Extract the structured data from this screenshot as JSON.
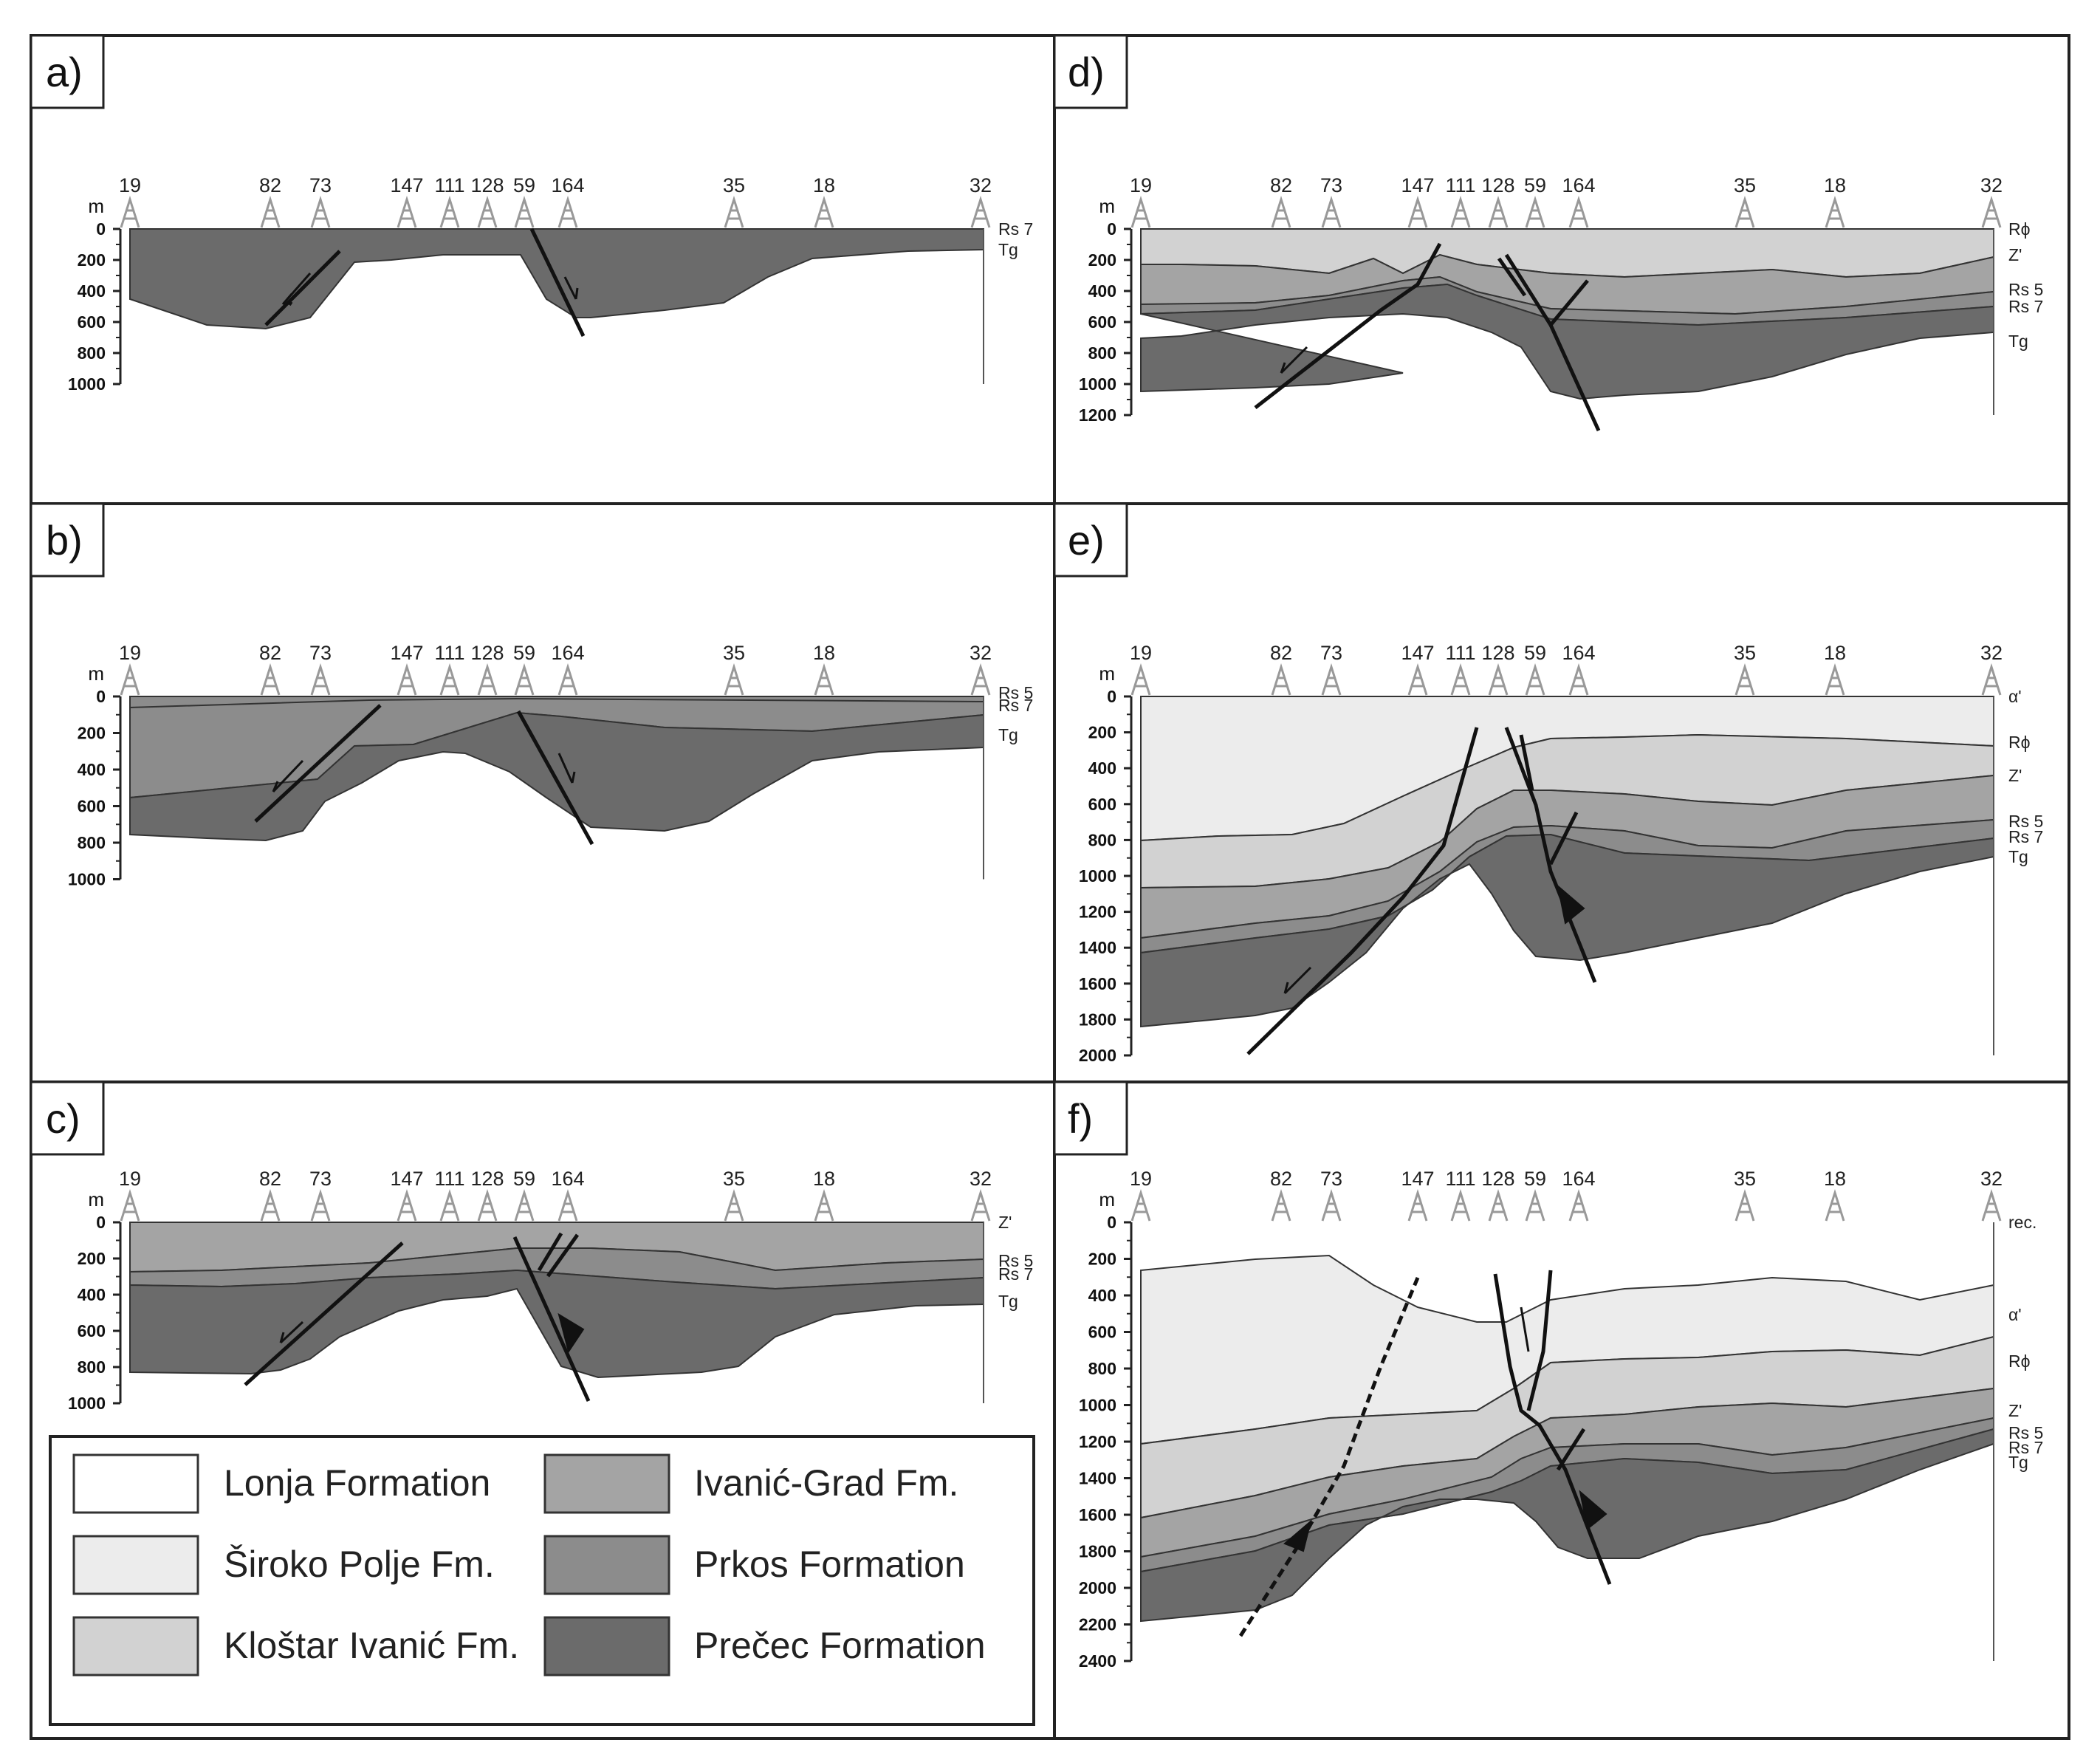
{
  "figure": {
    "wells": [
      "19",
      "82",
      "73",
      "147",
      "111",
      "128",
      "59",
      "164",
      "35",
      "18",
      "32"
    ],
    "depth_unit": "m",
    "panels": {
      "a": {
        "label": "a)",
        "depth_ticks": [
          "0",
          "200",
          "400",
          "600",
          "800",
          "1000"
        ],
        "horizons": [
          "Rs 7",
          "Tg"
        ]
      },
      "b": {
        "label": "b)",
        "depth_ticks": [
          "0",
          "200",
          "400",
          "600",
          "800",
          "1000"
        ],
        "horizons": [
          "Rs 5",
          "Rs 7",
          "Tg"
        ]
      },
      "c": {
        "label": "c)",
        "depth_ticks": [
          "0",
          "200",
          "400",
          "600",
          "800",
          "1000"
        ],
        "horizons": [
          "Z'",
          "Rs 5",
          "Rs 7",
          "Tg"
        ]
      },
      "d": {
        "label": "d)",
        "depth_ticks": [
          "0",
          "200",
          "400",
          "600",
          "800",
          "1000",
          "1200"
        ],
        "horizons": [
          "Rϕ",
          "Z'",
          "Rs 5",
          "Rs 7",
          "Tg"
        ]
      },
      "e": {
        "label": "e)",
        "depth_ticks": [
          "0",
          "200",
          "400",
          "600",
          "800",
          "1000",
          "1200",
          "1400",
          "1600",
          "1800",
          "2000"
        ],
        "horizons": [
          "α'",
          "Rϕ",
          "Z'",
          "Rs 5",
          "Rs 7",
          "Tg"
        ]
      },
      "f": {
        "label": "f)",
        "depth_ticks": [
          "0",
          "200",
          "400",
          "600",
          "800",
          "1000",
          "1200",
          "1400",
          "1600",
          "1800",
          "2000",
          "2200",
          "2400"
        ],
        "horizons": [
          "rec.",
          "α'",
          "Rϕ",
          "Z'",
          "Rs 5",
          "Rs 7",
          "Tg"
        ]
      }
    },
    "legend": {
      "items": [
        {
          "name": "Lonja Formation",
          "color": "#ffffff"
        },
        {
          "name": "Ivanić-Grad Fm.",
          "color": "#a4a4a4"
        },
        {
          "name": "Široko Polje Fm.",
          "color": "#ececec"
        },
        {
          "name": "Prkos Formation",
          "color": "#8c8c8c"
        },
        {
          "name": "Kloštar Ivanić Fm.",
          "color": "#d2d2d2"
        },
        {
          "name": "Prečec Formation",
          "color": "#6b6b6b"
        }
      ]
    }
  }
}
